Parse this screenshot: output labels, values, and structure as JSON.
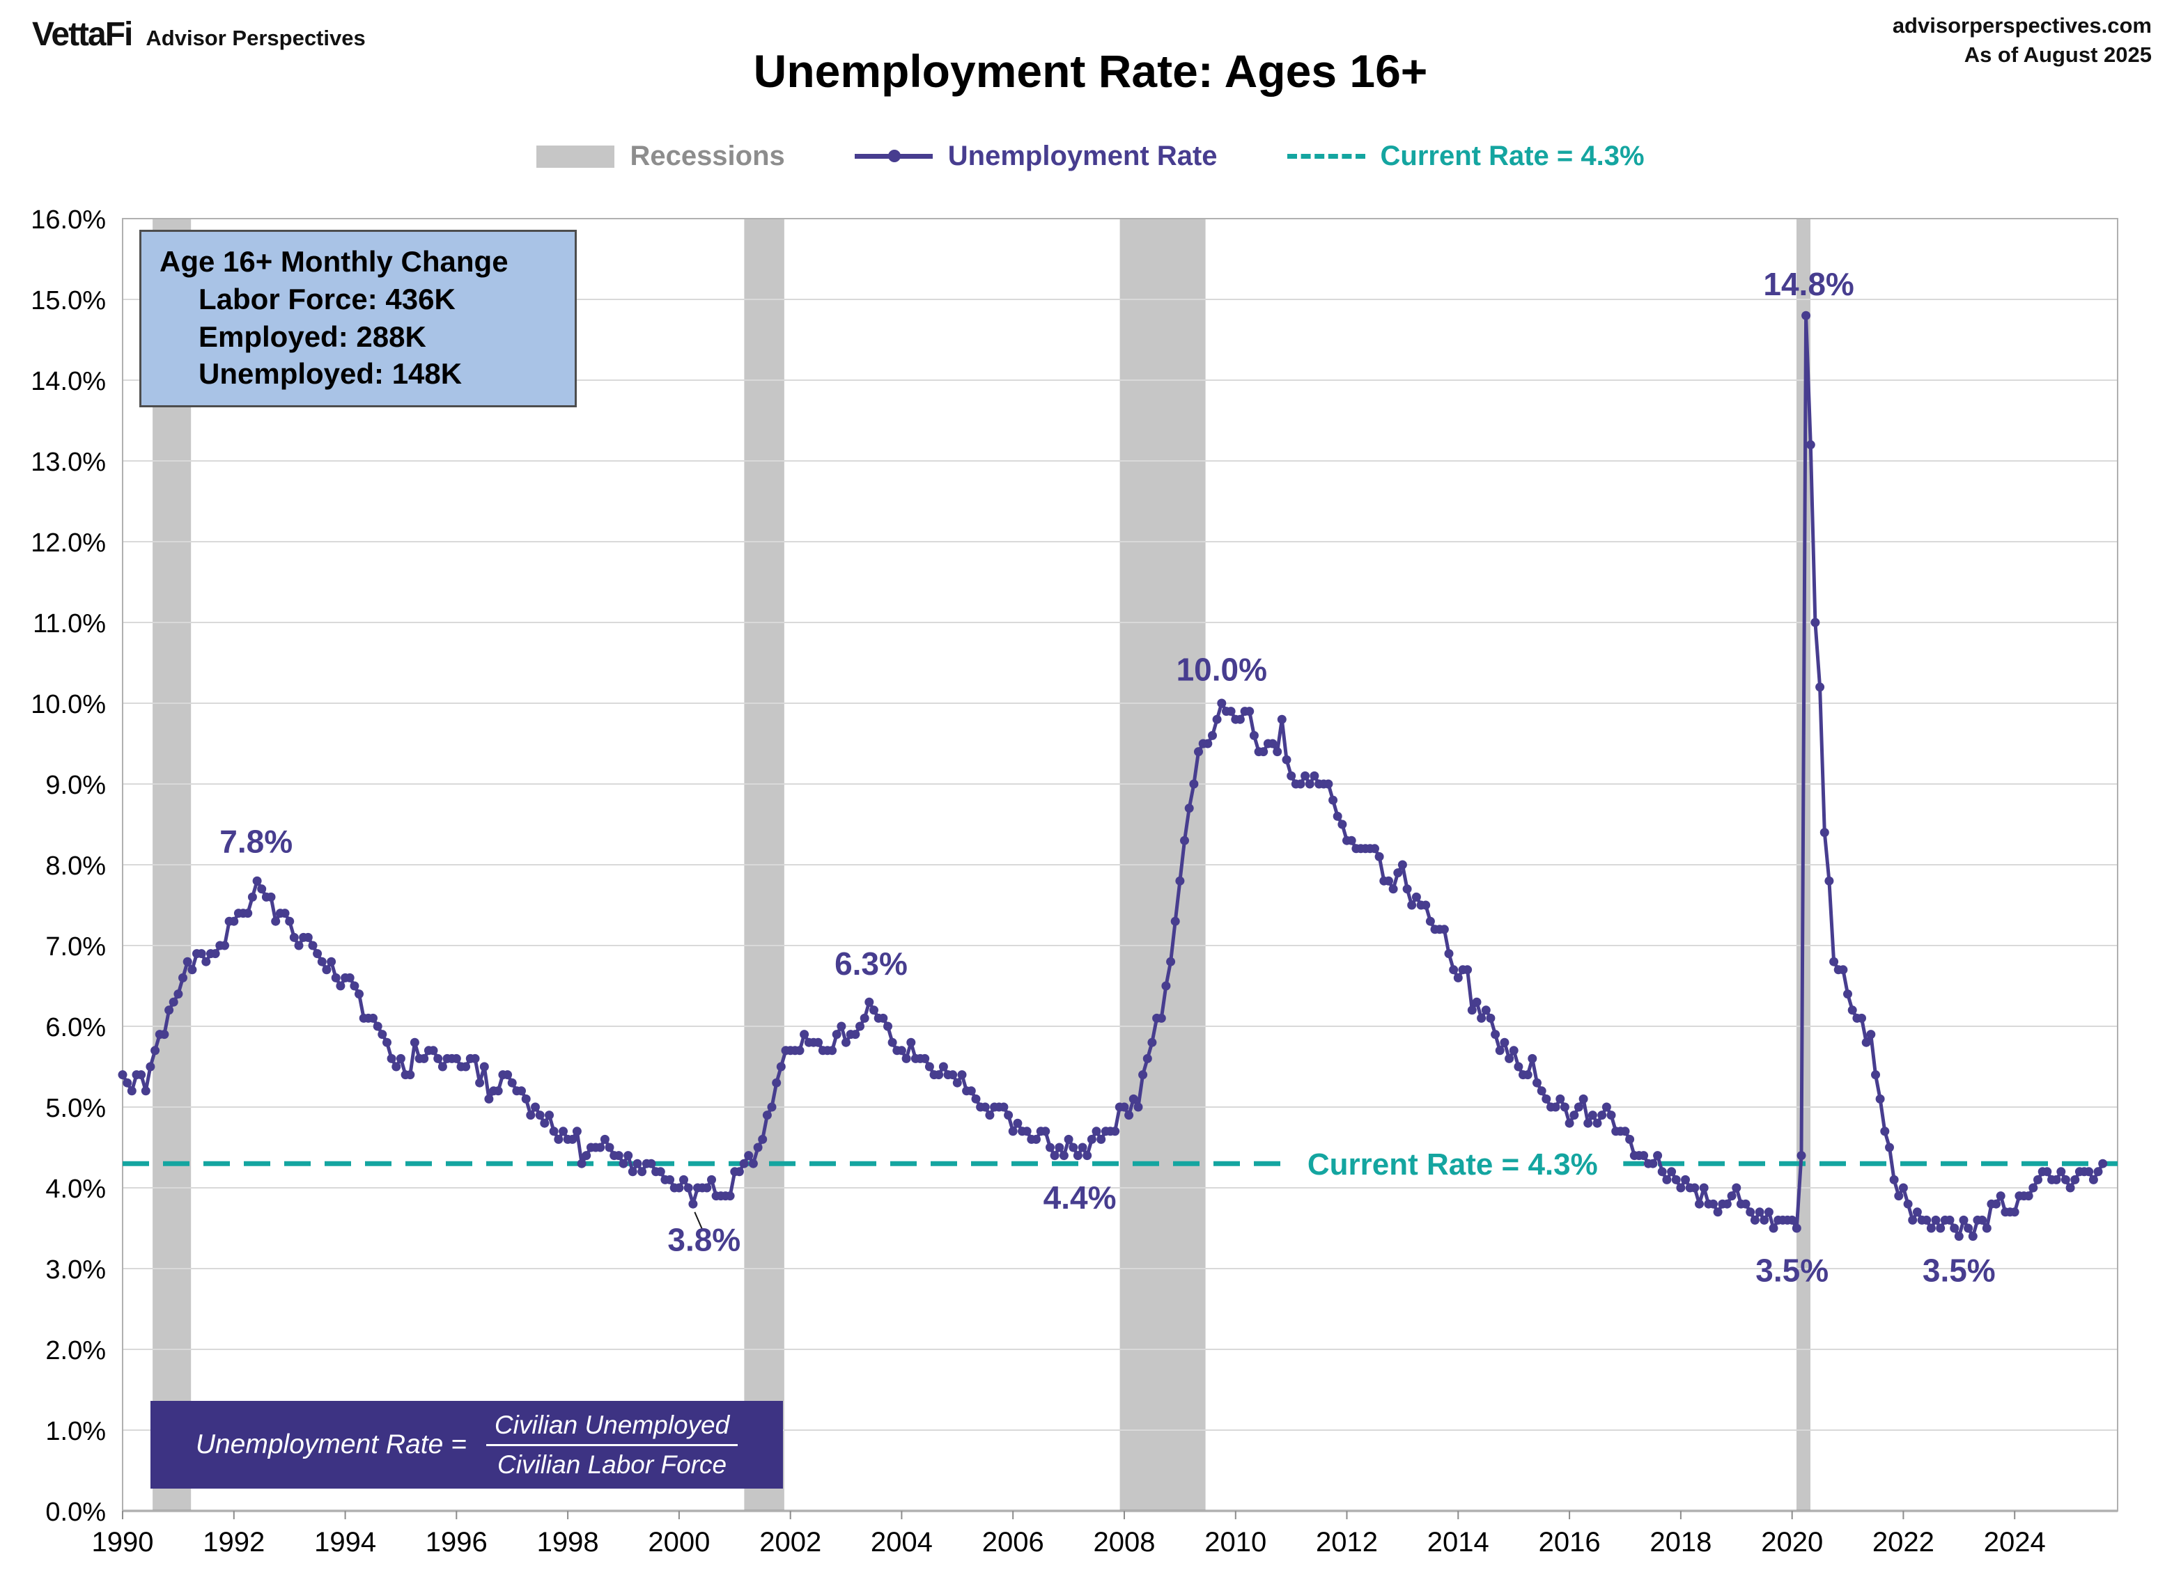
{
  "header": {
    "brand": "VettaFi",
    "brand_sub": "Advisor Perspectives",
    "site": "advisorperspectives.com",
    "as_of": "As of August 2025",
    "title": "Unemployment Rate: Ages 16+"
  },
  "legend": {
    "recessions": "Recessions",
    "series": "Unemployment Rate",
    "current_rate": "Current Rate = 4.3%"
  },
  "info_box": {
    "line1": "Age 16+ Monthly Change",
    "line2": "Labor Force: 436K",
    "line3": "Employed: 288K",
    "line4": "Unemployed: 148K"
  },
  "formula_box": {
    "lhs": "Unemployment Rate =",
    "numerator": "Civilian Unemployed",
    "denominator": "Civilian Labor Force"
  },
  "colors": {
    "line": "#473d8f",
    "teal": "#14a5a0",
    "recession": "#c6c6c6",
    "grid": "#d9d9d9",
    "axis": "#8c8c8c",
    "border": "#b0b0b0",
    "info_box_bg": "#a9c3e6",
    "formula_bg": "#3d3383",
    "label": "#473d8f"
  },
  "chart_data": {
    "type": "line",
    "title": "Unemployment Rate: Ages 16+",
    "series_name": "Unemployment Rate",
    "ylim": [
      0,
      16
    ],
    "y_tick_step": 1,
    "x_domain": [
      1990,
      2025.85
    ],
    "x_ticks": [
      1990,
      1992,
      1994,
      1996,
      1998,
      2000,
      2002,
      2004,
      2006,
      2008,
      2010,
      2012,
      2014,
      2016,
      2018,
      2020,
      2022,
      2024
    ],
    "start_year": 1990,
    "frequency": "monthly",
    "current_rate": 4.3,
    "current_rate_annotation": {
      "text": "Current Rate = 4.3%",
      "x": 2013.9
    },
    "recessions": [
      [
        1990.54,
        1991.23
      ],
      [
        2001.17,
        2001.89
      ],
      [
        2007.92,
        2009.46
      ],
      [
        2020.08,
        2020.33
      ]
    ],
    "annotations": [
      {
        "text": "7.8%",
        "x": 1992.4,
        "y": 8.15
      },
      {
        "text": "3.8%",
        "x": 2000.45,
        "y": 3.22,
        "leader": [
          2000.28,
          3.7,
          2000.42,
          3.48
        ]
      },
      {
        "text": "6.3%",
        "x": 2003.45,
        "y": 6.64
      },
      {
        "text": "4.4%",
        "x": 2007.2,
        "y": 3.74
      },
      {
        "text": "10.0%",
        "x": 2009.75,
        "y": 10.28
      },
      {
        "text": "14.8%",
        "x": 2020.3,
        "y": 15.05
      },
      {
        "text": "3.5%",
        "x": 2020.0,
        "y": 2.84
      },
      {
        "text": "3.5%",
        "x": 2023.0,
        "y": 2.84
      }
    ],
    "monthly_values": [
      5.4,
      5.3,
      5.2,
      5.4,
      5.4,
      5.2,
      5.5,
      5.7,
      5.9,
      5.9,
      6.2,
      6.3,
      6.4,
      6.6,
      6.8,
      6.7,
      6.9,
      6.9,
      6.8,
      6.9,
      6.9,
      7.0,
      7.0,
      7.3,
      7.3,
      7.4,
      7.4,
      7.4,
      7.6,
      7.8,
      7.7,
      7.6,
      7.6,
      7.3,
      7.4,
      7.4,
      7.3,
      7.1,
      7.0,
      7.1,
      7.1,
      7.0,
      6.9,
      6.8,
      6.7,
      6.8,
      6.6,
      6.5,
      6.6,
      6.6,
      6.5,
      6.4,
      6.1,
      6.1,
      6.1,
      6.0,
      5.9,
      5.8,
      5.6,
      5.5,
      5.6,
      5.4,
      5.4,
      5.8,
      5.6,
      5.6,
      5.7,
      5.7,
      5.6,
      5.5,
      5.6,
      5.6,
      5.6,
      5.5,
      5.5,
      5.6,
      5.6,
      5.3,
      5.5,
      5.1,
      5.2,
      5.2,
      5.4,
      5.4,
      5.3,
      5.2,
      5.2,
      5.1,
      4.9,
      5.0,
      4.9,
      4.8,
      4.9,
      4.7,
      4.6,
      4.7,
      4.6,
      4.6,
      4.7,
      4.3,
      4.4,
      4.5,
      4.5,
      4.5,
      4.6,
      4.5,
      4.4,
      4.4,
      4.3,
      4.4,
      4.2,
      4.3,
      4.2,
      4.3,
      4.3,
      4.2,
      4.2,
      4.1,
      4.1,
      4.0,
      4.0,
      4.1,
      4.0,
      3.8,
      4.0,
      4.0,
      4.0,
      4.1,
      3.9,
      3.9,
      3.9,
      3.9,
      4.2,
      4.2,
      4.3,
      4.4,
      4.3,
      4.5,
      4.6,
      4.9,
      5.0,
      5.3,
      5.5,
      5.7,
      5.7,
      5.7,
      5.7,
      5.9,
      5.8,
      5.8,
      5.8,
      5.7,
      5.7,
      5.7,
      5.9,
      6.0,
      5.8,
      5.9,
      5.9,
      6.0,
      6.1,
      6.3,
      6.2,
      6.1,
      6.1,
      6.0,
      5.8,
      5.7,
      5.7,
      5.6,
      5.8,
      5.6,
      5.6,
      5.6,
      5.5,
      5.4,
      5.4,
      5.5,
      5.4,
      5.4,
      5.3,
      5.4,
      5.2,
      5.2,
      5.1,
      5.0,
      5.0,
      4.9,
      5.0,
      5.0,
      5.0,
      4.9,
      4.7,
      4.8,
      4.7,
      4.7,
      4.6,
      4.6,
      4.7,
      4.7,
      4.5,
      4.4,
      4.5,
      4.4,
      4.6,
      4.5,
      4.4,
      4.5,
      4.4,
      4.6,
      4.7,
      4.6,
      4.7,
      4.7,
      4.7,
      5.0,
      5.0,
      4.9,
      5.1,
      5.0,
      5.4,
      5.6,
      5.8,
      6.1,
      6.1,
      6.5,
      6.8,
      7.3,
      7.8,
      8.3,
      8.7,
      9.0,
      9.4,
      9.5,
      9.5,
      9.6,
      9.8,
      10.0,
      9.9,
      9.9,
      9.8,
      9.8,
      9.9,
      9.9,
      9.6,
      9.4,
      9.4,
      9.5,
      9.5,
      9.4,
      9.8,
      9.3,
      9.1,
      9.0,
      9.0,
      9.1,
      9.0,
      9.1,
      9.0,
      9.0,
      9.0,
      8.8,
      8.6,
      8.5,
      8.3,
      8.3,
      8.2,
      8.2,
      8.2,
      8.2,
      8.2,
      8.1,
      7.8,
      7.8,
      7.7,
      7.9,
      8.0,
      7.7,
      7.5,
      7.6,
      7.5,
      7.5,
      7.3,
      7.2,
      7.2,
      7.2,
      6.9,
      6.7,
      6.6,
      6.7,
      6.7,
      6.2,
      6.3,
      6.1,
      6.2,
      6.1,
      5.9,
      5.7,
      5.8,
      5.6,
      5.7,
      5.5,
      5.4,
      5.4,
      5.6,
      5.3,
      5.2,
      5.1,
      5.0,
      5.0,
      5.1,
      5.0,
      4.8,
      4.9,
      5.0,
      5.1,
      4.8,
      4.9,
      4.8,
      4.9,
      5.0,
      4.9,
      4.7,
      4.7,
      4.7,
      4.6,
      4.4,
      4.4,
      4.4,
      4.3,
      4.3,
      4.4,
      4.2,
      4.1,
      4.2,
      4.1,
      4.0,
      4.1,
      4.0,
      4.0,
      3.8,
      4.0,
      3.8,
      3.8,
      3.7,
      3.8,
      3.8,
      3.9,
      4.0,
      3.8,
      3.8,
      3.7,
      3.6,
      3.7,
      3.6,
      3.7,
      3.5,
      3.6,
      3.6,
      3.6,
      3.6,
      3.5,
      4.4,
      14.8,
      13.2,
      11.0,
      10.2,
      8.4,
      7.8,
      6.8,
      6.7,
      6.7,
      6.4,
      6.2,
      6.1,
      6.1,
      5.8,
      5.9,
      5.4,
      5.1,
      4.7,
      4.5,
      4.1,
      3.9,
      4.0,
      3.8,
      3.6,
      3.7,
      3.6,
      3.6,
      3.5,
      3.6,
      3.5,
      3.6,
      3.6,
      3.5,
      3.4,
      3.6,
      3.5,
      3.4,
      3.6,
      3.6,
      3.5,
      3.8,
      3.8,
      3.9,
      3.7,
      3.7,
      3.7,
      3.9,
      3.9,
      3.9,
      4.0,
      4.1,
      4.2,
      4.2,
      4.1,
      4.1,
      4.2,
      4.1,
      4.0,
      4.1,
      4.2,
      4.2,
      4.2,
      4.1,
      4.2,
      4.3
    ]
  }
}
